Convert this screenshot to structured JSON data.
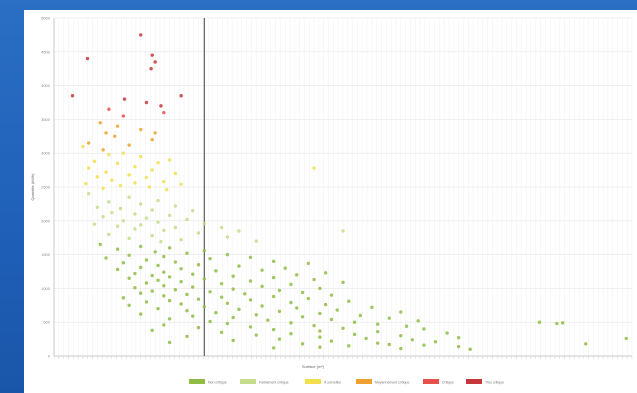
{
  "chart_data": {
    "type": "scatter",
    "title": "",
    "xlabel": "Surface (m²)",
    "ylabel": "Quantité (kWh)",
    "ylim": [
      0,
      5000
    ],
    "yticks": [
      "0",
      "500",
      "1000",
      "1500",
      "2000",
      "2500",
      "3000",
      "3500",
      "4000",
      "4500",
      "5000"
    ],
    "xlim": [
      0,
      1000
    ],
    "vline_x": 260,
    "grid": true,
    "legend_position": "bottom",
    "categories": [
      {
        "label": "Non critique",
        "color": "#8fbc45"
      },
      {
        "label": "Faiblement critique",
        "color": "#c6dc8a"
      },
      {
        "label": "À surveiller",
        "color": "#f1df4c"
      },
      {
        "label": "Moyennement critique",
        "color": "#efa12f"
      },
      {
        "label": "Critique",
        "color": "#e8504b"
      },
      {
        "label": "Très critique",
        "color": "#c6373a"
      }
    ],
    "series": [
      {
        "name": "Très critique",
        "points": [
          [
            150,
            4750
          ],
          [
            58,
            4400
          ],
          [
            170,
            4450
          ],
          [
            175,
            4350
          ],
          [
            168,
            4250
          ],
          [
            32,
            3850
          ],
          [
            122,
            3800
          ],
          [
            220,
            3850
          ],
          [
            160,
            3750
          ],
          [
            185,
            3700
          ]
        ]
      },
      {
        "name": "Critique",
        "points": [
          [
            95,
            3650
          ],
          [
            190,
            3600
          ],
          [
            120,
            3550
          ]
        ]
      },
      {
        "name": "Moyennement critique",
        "points": [
          [
            80,
            3450
          ],
          [
            110,
            3400
          ],
          [
            90,
            3300
          ],
          [
            150,
            3350
          ],
          [
            175,
            3300
          ],
          [
            105,
            3250
          ],
          [
            170,
            3200
          ],
          [
            60,
            3150
          ],
          [
            130,
            3120
          ],
          [
            85,
            3050
          ]
        ]
      },
      {
        "name": "À surveiller",
        "points": [
          [
            50,
            3100
          ],
          [
            120,
            3000
          ],
          [
            95,
            2980
          ],
          [
            150,
            2950
          ],
          [
            200,
            2900
          ],
          [
            70,
            2880
          ],
          [
            180,
            2860
          ],
          [
            110,
            2850
          ],
          [
            140,
            2800
          ],
          [
            60,
            2780
          ],
          [
            170,
            2750
          ],
          [
            90,
            2720
          ],
          [
            210,
            2700
          ],
          [
            130,
            2680
          ],
          [
            75,
            2650
          ],
          [
            160,
            2640
          ],
          [
            100,
            2600
          ],
          [
            190,
            2580
          ],
          [
            140,
            2560
          ],
          [
            55,
            2550
          ],
          [
            220,
            2540
          ],
          [
            115,
            2520
          ],
          [
            165,
            2500
          ],
          [
            85,
            2480
          ],
          [
            450,
            2780
          ],
          [
            195,
            2460
          ]
        ]
      },
      {
        "name": "Faiblement critique",
        "points": [
          [
            60,
            2400
          ],
          [
            130,
            2350
          ],
          [
            180,
            2300
          ],
          [
            95,
            2280
          ],
          [
            150,
            2250
          ],
          [
            210,
            2220
          ],
          [
            75,
            2200
          ],
          [
            115,
            2180
          ],
          [
            170,
            2160
          ],
          [
            240,
            2150
          ],
          [
            100,
            2120
          ],
          [
            140,
            2100
          ],
          [
            200,
            2080
          ],
          [
            85,
            2060
          ],
          [
            160,
            2040
          ],
          [
            230,
            2020
          ],
          [
            120,
            2000
          ],
          [
            180,
            1980
          ],
          [
            260,
            1960
          ],
          [
            70,
            1950
          ],
          [
            150,
            1940
          ],
          [
            110,
            1920
          ],
          [
            210,
            1900
          ],
          [
            140,
            1880
          ],
          [
            290,
            1900
          ],
          [
            320,
            1850
          ],
          [
            190,
            1860
          ],
          [
            250,
            1820
          ],
          [
            95,
            1800
          ],
          [
            170,
            1780
          ],
          [
            300,
            1760
          ],
          [
            130,
            1740
          ],
          [
            220,
            1720
          ],
          [
            350,
            1700
          ],
          [
            185,
            1690
          ],
          [
            500,
            1850
          ]
        ]
      },
      {
        "name": "Non critique",
        "points": [
          [
            80,
            1650
          ],
          [
            150,
            1620
          ],
          [
            200,
            1600
          ],
          [
            110,
            1580
          ],
          [
            260,
            1560
          ],
          [
            175,
            1540
          ],
          [
            230,
            1520
          ],
          [
            300,
            1500
          ],
          [
            130,
            1490
          ],
          [
            190,
            1470
          ],
          [
            340,
            1460
          ],
          [
            90,
            1450
          ],
          [
            270,
            1440
          ],
          [
            160,
            1420
          ],
          [
            380,
            1400
          ],
          [
            210,
            1390
          ],
          [
            120,
            1380
          ],
          [
            440,
            1370
          ],
          [
            250,
            1350
          ],
          [
            180,
            1340
          ],
          [
            320,
            1330
          ],
          [
            150,
            1310
          ],
          [
            400,
            1300
          ],
          [
            220,
            1290
          ],
          [
            110,
            1280
          ],
          [
            360,
            1270
          ],
          [
            280,
            1260
          ],
          [
            190,
            1240
          ],
          [
            470,
            1230
          ],
          [
            140,
            1220
          ],
          [
            240,
            1210
          ],
          [
            420,
            1200
          ],
          [
            170,
            1190
          ],
          [
            310,
            1180
          ],
          [
            200,
            1170
          ],
          [
            380,
            1160
          ],
          [
            130,
            1150
          ],
          [
            260,
            1140
          ],
          [
            450,
            1130
          ],
          [
            180,
            1120
          ],
          [
            340,
            1110
          ],
          [
            220,
            1100
          ],
          [
            500,
            1090
          ],
          [
            160,
            1080
          ],
          [
            290,
            1070
          ],
          [
            410,
            1060
          ],
          [
            190,
            1040
          ],
          [
            360,
            1030
          ],
          [
            240,
            1020
          ],
          [
            140,
            1010
          ],
          [
            460,
            1000
          ],
          [
            310,
            990
          ],
          [
            210,
            980
          ],
          [
            390,
            970
          ],
          [
            170,
            960
          ],
          [
            270,
            950
          ],
          [
            430,
            940
          ],
          [
            150,
            930
          ],
          [
            330,
            920
          ],
          [
            230,
            910
          ],
          [
            480,
            900
          ],
          [
            190,
            890
          ],
          [
            380,
            880
          ],
          [
            290,
            870
          ],
          [
            120,
            860
          ],
          [
            440,
            850
          ],
          [
            250,
            840
          ],
          [
            340,
            830
          ],
          [
            200,
            820
          ],
          [
            510,
            810
          ],
          [
            160,
            800
          ],
          [
            410,
            790
          ],
          [
            300,
            780
          ],
          [
            220,
            770
          ],
          [
            470,
            760
          ],
          [
            130,
            750
          ],
          [
            360,
            740
          ],
          [
            260,
            730
          ],
          [
            550,
            720
          ],
          [
            420,
            710
          ],
          [
            180,
            700
          ],
          [
            320,
            690
          ],
          [
            490,
            680
          ],
          [
            230,
            670
          ],
          [
            390,
            660
          ],
          [
            600,
            650
          ],
          [
            280,
            640
          ],
          [
            460,
            630
          ],
          [
            150,
            620
          ],
          [
            350,
            610
          ],
          [
            530,
            600
          ],
          [
            240,
            590
          ],
          [
            430,
            580
          ],
          [
            310,
            570
          ],
          [
            580,
            560
          ],
          [
            200,
            550
          ],
          [
            480,
            540
          ],
          [
            370,
            530
          ],
          [
            630,
            520
          ],
          [
            270,
            510
          ],
          [
            520,
            500
          ],
          [
            410,
            490
          ],
          [
            300,
            480
          ],
          [
            560,
            470
          ],
          [
            190,
            460
          ],
          [
            450,
            450
          ],
          [
            610,
            440
          ],
          [
            340,
            430
          ],
          [
            250,
            420
          ],
          [
            500,
            410
          ],
          [
            640,
            400
          ],
          [
            380,
            390
          ],
          [
            170,
            380
          ],
          [
            460,
            370
          ],
          [
            560,
            360
          ],
          [
            290,
            350
          ],
          [
            680,
            340
          ],
          [
            410,
            330
          ],
          [
            520,
            320
          ],
          [
            350,
            310
          ],
          [
            600,
            300
          ],
          [
            230,
            290
          ],
          [
            460,
            280
          ],
          [
            700,
            270
          ],
          [
            540,
            260
          ],
          [
            390,
            250
          ],
          [
            620,
            240
          ],
          [
            310,
            230
          ],
          [
            480,
            220
          ],
          [
            660,
            210
          ],
          [
            200,
            200
          ],
          [
            560,
            190
          ],
          [
            430,
            180
          ],
          [
            580,
            170
          ],
          [
            640,
            160
          ],
          [
            510,
            150
          ],
          [
            700,
            140
          ],
          [
            460,
            130
          ],
          [
            380,
            120
          ],
          [
            600,
            110
          ],
          [
            720,
            100
          ],
          [
            840,
            500
          ],
          [
            870,
            480
          ],
          [
            880,
            490
          ],
          [
            920,
            180
          ],
          [
            990,
            260
          ]
        ]
      }
    ]
  }
}
